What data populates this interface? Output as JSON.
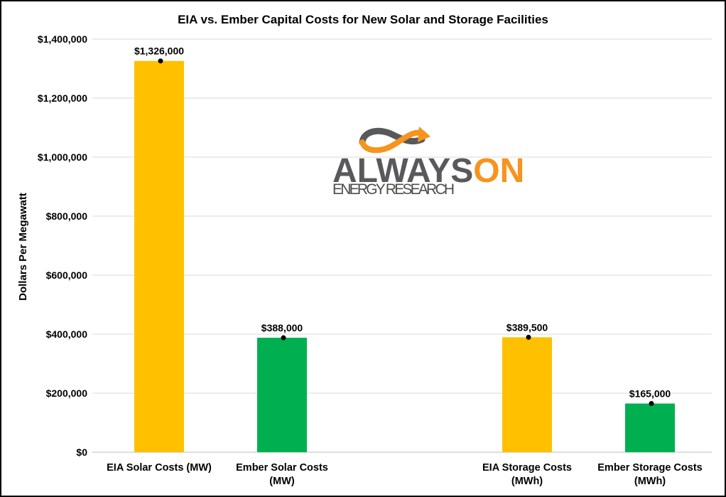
{
  "chart_data": {
    "type": "bar",
    "title": "EIA vs. Ember Capital Costs for New Solar and Storage Facilities",
    "ylabel": "Dollars Per Megawatt",
    "xlabel": "",
    "ylim": [
      0,
      1400000
    ],
    "yticks": [
      0,
      200000,
      400000,
      600000,
      800000,
      1000000,
      1200000,
      1400000
    ],
    "ytick_labels": [
      "$0",
      "$200,000",
      "$400,000",
      "$600,000",
      "$800,000",
      "$1,000,000",
      "$1,200,000",
      "$1,400,000"
    ],
    "grid": true,
    "categories": [
      [
        "EIA Solar Costs (MW)"
      ],
      [
        "Ember Solar Costs",
        "(MW)"
      ],
      [
        "EIA Storage Costs",
        "(MWh)"
      ],
      [
        "Ember Storage Costs",
        "(MWh)"
      ]
    ],
    "values": [
      1326000,
      388000,
      389500,
      165000
    ],
    "data_labels": [
      "$1,326,000",
      "$388,000",
      "$389,500",
      "$165,000"
    ],
    "colors": [
      "#FFC000",
      "#00B050",
      "#FFC000",
      "#00B050"
    ],
    "gridline_color": "#D9D9D9"
  },
  "watermark": {
    "logo_text_1": "ALWAYS",
    "logo_text_2": "ON",
    "logo_subtext": "ENERGY RESEARCH",
    "gray": "#58595B",
    "orange": "#F7941D"
  }
}
